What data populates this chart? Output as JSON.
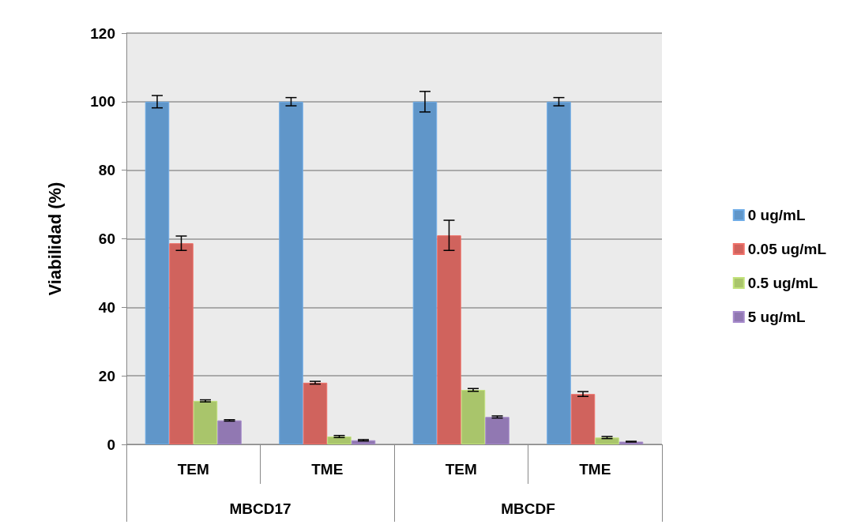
{
  "chart_data": {
    "type": "bar",
    "ylabel": "Viabilidad (%)",
    "categories": [
      "TEM",
      "TME",
      "TEM",
      "TME"
    ],
    "annotations": [
      "MBCD17",
      "MBCDF"
    ],
    "series": [
      {
        "name": "0 ug/mL",
        "color": "#6096c9",
        "values": [
          100,
          100,
          100,
          100
        ],
        "errors": [
          1.8,
          1.2,
          3,
          1.2
        ]
      },
      {
        "name": "0.05 ug/mL",
        "color": "#d0635d",
        "values": [
          58.7,
          18,
          61,
          14.7
        ],
        "errors": [
          2.1,
          0.4,
          4.4,
          0.7
        ]
      },
      {
        "name": "0.5 ug/mL",
        "color": "#a9c56b",
        "values": [
          12.7,
          2.3,
          15.9,
          2
        ],
        "errors": [
          0.3,
          0.3,
          0.4,
          0.3
        ]
      },
      {
        "name": "5 ug/mL",
        "color": "#9178b2",
        "values": [
          7,
          1.2,
          8,
          0.8
        ],
        "errors": [
          0.2,
          0.2,
          0.3,
          0.1
        ]
      }
    ],
    "ylim": [
      0,
      120
    ],
    "yticks": [
      0,
      20,
      40,
      60,
      80,
      100,
      120
    ],
    "grid": "y",
    "legend": "right"
  }
}
